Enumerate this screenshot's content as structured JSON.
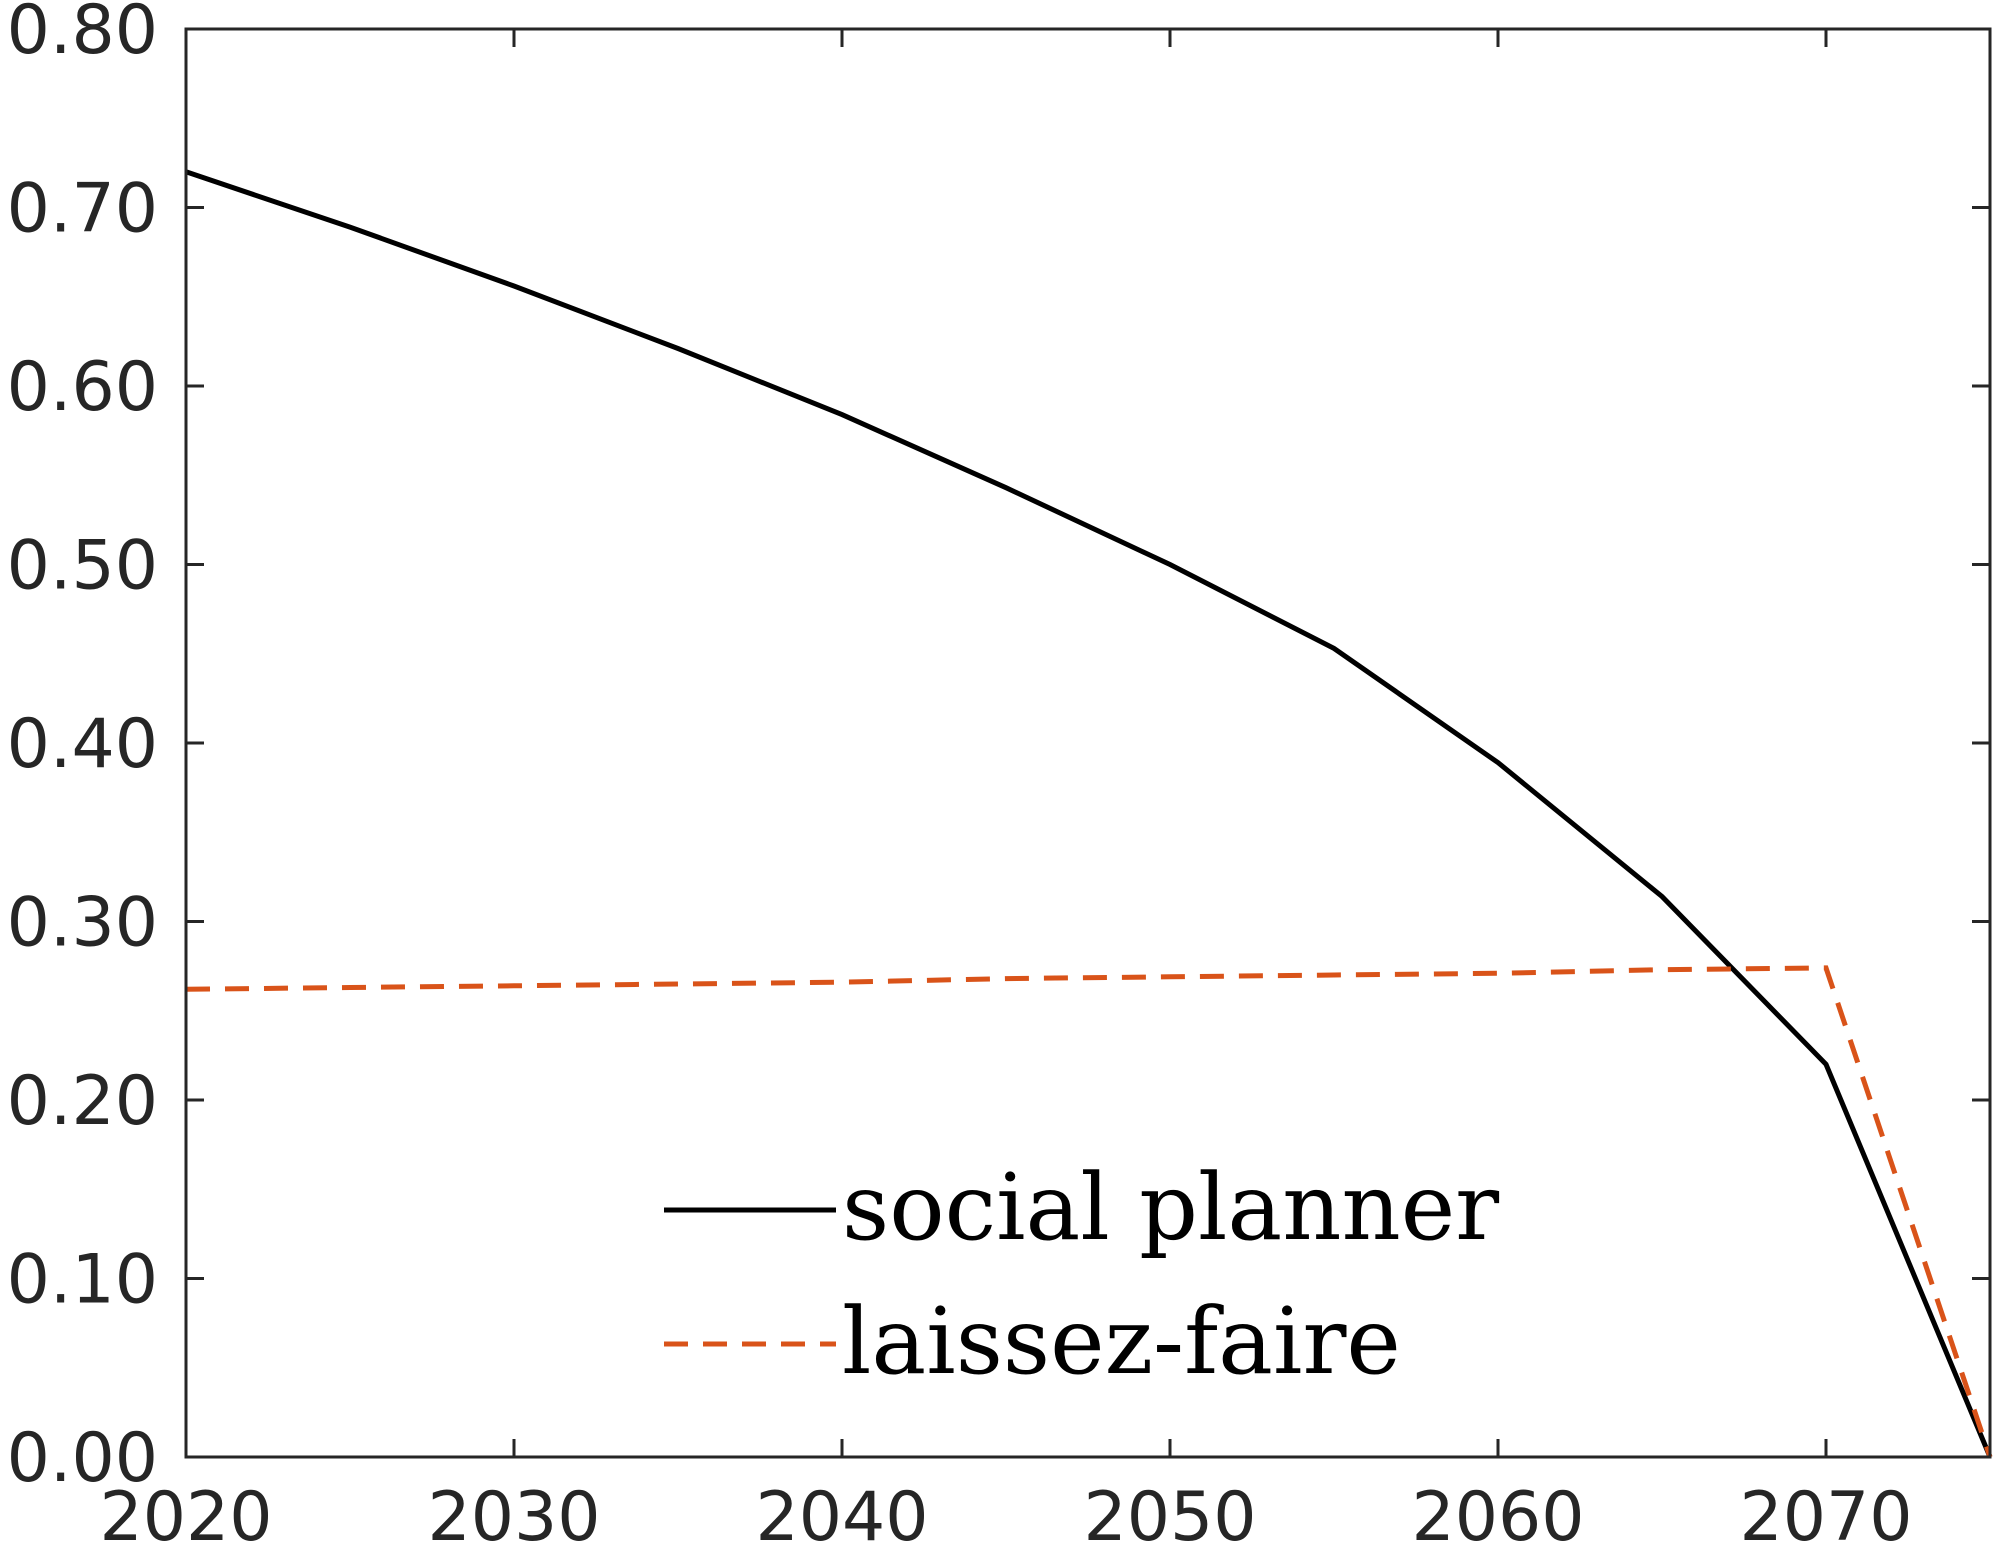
{
  "chart_data": {
    "type": "line",
    "title": "",
    "xlabel": "",
    "ylabel": "",
    "xlim": [
      2020,
      2075
    ],
    "ylim": [
      0,
      0.8
    ],
    "x_ticks": [
      2020,
      2030,
      2040,
      2050,
      2060,
      2070
    ],
    "x_tick_labels": [
      "2020",
      "2030",
      "2040",
      "2050",
      "2060",
      "2070"
    ],
    "y_ticks": [
      0,
      0.1,
      0.2,
      0.3,
      0.4,
      0.5,
      0.6,
      0.7,
      0.8
    ],
    "y_tick_labels": [
      "0.00",
      "0.10",
      "0.20",
      "0.30",
      "0.40",
      "0.50",
      "0.60",
      "0.70",
      "0.80"
    ],
    "grid": false,
    "legend_position": "bottom-center",
    "x": [
      2020,
      2025,
      2030,
      2035,
      2040,
      2045,
      2050,
      2055,
      2060,
      2065,
      2070,
      2075
    ],
    "series": [
      {
        "name": "social planner",
        "color": "#000000",
        "line_style": "solid",
        "values": [
          0.72,
          0.689,
          0.656,
          0.621,
          0.584,
          0.543,
          0.5,
          0.453,
          0.389,
          0.314,
          0.22,
          0.0
        ]
      },
      {
        "name": "laissez-faire",
        "color": "#D95319",
        "line_style": "dashed",
        "values": [
          0.262,
          0.263,
          0.264,
          0.265,
          0.266,
          0.268,
          0.269,
          0.27,
          0.271,
          0.273,
          0.274,
          0.0
        ]
      }
    ]
  }
}
